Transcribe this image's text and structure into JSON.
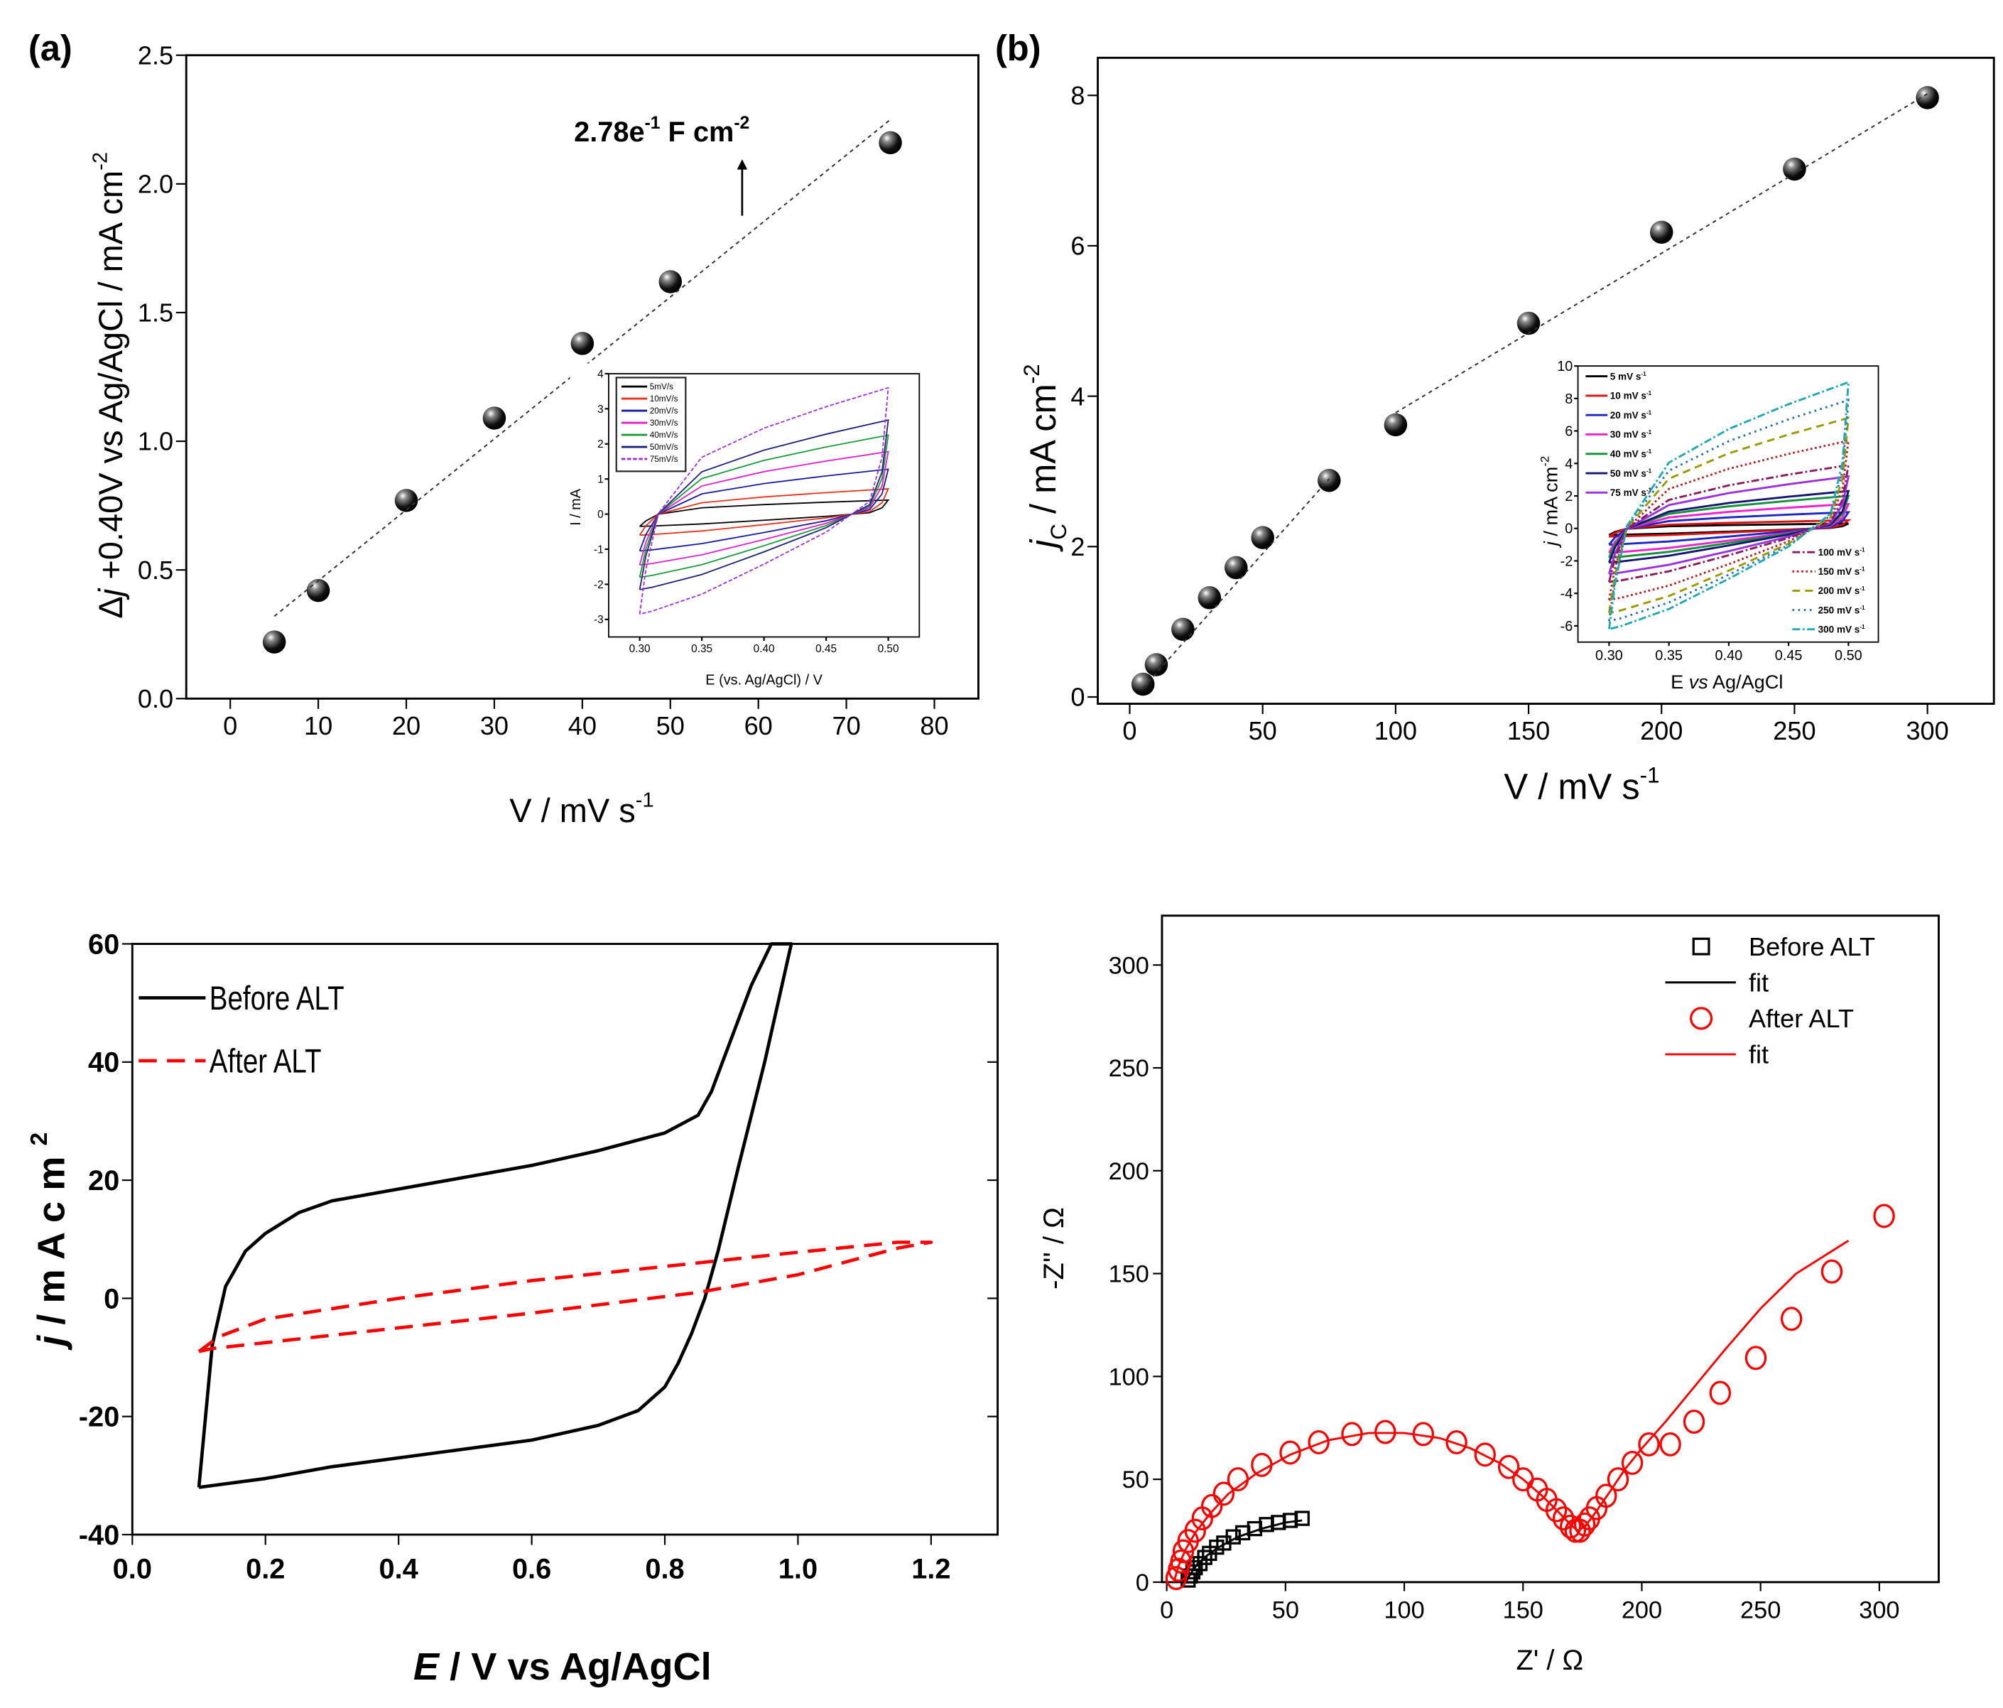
{
  "panels": {
    "a_label": "(a)",
    "b_label": "(b)"
  },
  "chart_data": [
    {
      "id": "panel-a",
      "type": "scatter",
      "xlim": [
        -5,
        85
      ],
      "ylim": [
        0,
        2.5
      ],
      "xticks": [
        0,
        10,
        20,
        30,
        40,
        50,
        60,
        70,
        80
      ],
      "xtick_labels": [
        "0",
        "10",
        "20",
        "30",
        "40",
        "50",
        "60",
        "70",
        "80"
      ],
      "yticks": [
        0,
        0.5,
        1,
        1.5,
        2,
        2.5
      ],
      "ytick_labels": [
        "0.0",
        "0.5",
        "1.0",
        "1.5",
        "2.0",
        "2.5"
      ],
      "xlabel": [
        {
          "t": "V / mV s",
          "s": ""
        },
        {
          "t": "-1",
          "s": "sup"
        }
      ],
      "ylabel": [
        {
          "t": "Δ",
          "s": ""
        },
        {
          "t": "j",
          "s": "i"
        },
        {
          "t": " +0.40V vs Ag/AgCl / mA cm",
          "s": ""
        },
        {
          "t": "-2",
          "s": "sup"
        }
      ],
      "annotation": [
        {
          "t": "2.78e",
          "s": ""
        },
        {
          "t": "-1",
          "s": "sup"
        },
        {
          "t": " F cm",
          "s": ""
        },
        {
          "t": "-2",
          "s": "sup"
        }
      ],
      "series": [
        {
          "kind": "sphere",
          "color": "#000000",
          "x": [
            5,
            10,
            20,
            30,
            40,
            50,
            75
          ],
          "y": [
            0.22,
            0.42,
            0.77,
            1.09,
            1.38,
            1.62,
            2.16
          ]
        },
        {
          "kind": "fit",
          "color": "#333333",
          "x": [
            5,
            75
          ],
          "y": [
            0.32,
            2.25
          ]
        }
      ]
    },
    {
      "id": "panel-a-inset",
      "type": "line",
      "xlim": [
        0.275,
        0.525
      ],
      "ylim": [
        -3.5,
        4
      ],
      "xticks": [
        0.3,
        0.35,
        0.4,
        0.45,
        0.5
      ],
      "xtick_labels": [
        "0.30",
        "0.35",
        "0.40",
        "0.45",
        "0.50"
      ],
      "yticks": [
        -3,
        -2,
        -1,
        0,
        1,
        2,
        3,
        4
      ],
      "ytick_labels": [
        "-3",
        "-2",
        "-1",
        "0",
        "1",
        "2",
        "3",
        "4"
      ],
      "xlabel": [
        {
          "t": "E (vs. Ag/AgCl) / V",
          "s": ""
        }
      ],
      "ylabel": [
        {
          "t": "I / mA",
          "s": ""
        }
      ],
      "series": [
        {
          "name": "5mV/s",
          "color": "#000000",
          "dash": "",
          "j_max": 0.4,
          "j_min": -0.35
        },
        {
          "name": "10mV/s",
          "color": "#e8321e",
          "dash": "",
          "j_max": 0.72,
          "j_min": -0.6
        },
        {
          "name": "20mV/s",
          "color": "#1a1aa0",
          "dash": "",
          "j_max": 1.28,
          "j_min": -1.05
        },
        {
          "name": "30mV/s",
          "color": "#e020c8",
          "dash": "",
          "j_max": 1.78,
          "j_min": -1.45
        },
        {
          "name": "40mV/s",
          "color": "#1c9a3c",
          "dash": "",
          "j_max": 2.25,
          "j_min": -1.8
        },
        {
          "name": "50mV/s",
          "color": "#20207a",
          "dash": "",
          "j_max": 2.68,
          "j_min": -2.15
        },
        {
          "name": "75mV/s",
          "color": "#a030e0",
          "dash": "3 1.5",
          "j_max": 3.6,
          "j_min": -2.85
        }
      ]
    },
    {
      "id": "panel-b",
      "type": "scatter",
      "xlim": [
        -12,
        325
      ],
      "ylim": [
        -0.09,
        8.5
      ],
      "xticks": [
        0,
        50,
        100,
        150,
        200,
        250,
        300
      ],
      "xtick_labels": [
        "0",
        "50",
        "100",
        "150",
        "200",
        "250",
        "300"
      ],
      "yticks": [
        0,
        2,
        4,
        6,
        8
      ],
      "ytick_labels": [
        "0",
        "2",
        "4",
        "6",
        "8"
      ],
      "xlabel": [
        {
          "t": "V / mV s",
          "s": ""
        },
        {
          "t": "-1",
          "s": "sup"
        }
      ],
      "ylabel": [
        {
          "t": "j",
          "s": "i"
        },
        {
          "t": "C",
          "s": "sub"
        },
        {
          "t": " / mA cm",
          "s": ""
        },
        {
          "t": "-2",
          "s": "sup"
        }
      ],
      "series": [
        {
          "kind": "sphere",
          "color": "#000000",
          "x": [
            5,
            10,
            20,
            30,
            40,
            50,
            75,
            100,
            150,
            200,
            250,
            300
          ],
          "y": [
            0.17,
            0.43,
            0.9,
            1.32,
            1.72,
            2.12,
            2.88,
            3.62,
            4.97,
            6.18,
            7.02,
            7.97
          ]
        },
        {
          "kind": "fit",
          "color": "#333333",
          "x": [
            5,
            75
          ],
          "y": [
            0.12,
            2.9
          ]
        },
        {
          "kind": "fit",
          "color": "#333333",
          "x": [
            100,
            300
          ],
          "y": [
            3.78,
            8.02
          ]
        }
      ]
    },
    {
      "id": "panel-b-inset",
      "type": "line",
      "xlim": [
        0.274,
        0.525
      ],
      "ylim": [
        -7,
        10
      ],
      "xticks": [
        0.3,
        0.35,
        0.4,
        0.45,
        0.5
      ],
      "xtick_labels": [
        "0.30",
        "0.35",
        "0.40",
        "0.45",
        "0.50"
      ],
      "yticks": [
        -6,
        -4,
        -2,
        0,
        2,
        4,
        6,
        8,
        10
      ],
      "ytick_labels": [
        "-6",
        "-4",
        "-2",
        "0",
        "2",
        "4",
        "6",
        "8",
        "10"
      ],
      "xlabel": [
        {
          "t": "E ",
          "s": ""
        },
        {
          "t": "vs",
          "s": "i"
        },
        {
          "t": " Ag/AgCl",
          "s": ""
        }
      ],
      "ylabel": [
        {
          "t": "j",
          "s": "i"
        },
        {
          "t": " / mA cm",
          "s": ""
        },
        {
          "t": "-2",
          "s": "sup"
        }
      ],
      "series": [
        {
          "name": "5 mV s",
          "sup": "-1",
          "color": "#000000",
          "dash": "",
          "j_max": 0.3,
          "j_min": -0.4
        },
        {
          "name": "10 mV s",
          "sup": "-1",
          "color": "#e01010",
          "dash": "",
          "j_max": 0.5,
          "j_min": -0.5
        },
        {
          "name": "20 mV s",
          "sup": "-1",
          "color": "#1a28c8",
          "dash": "",
          "j_max": 1.0,
          "j_min": -1.0
        },
        {
          "name": "30 mV s",
          "sup": "-1",
          "color": "#f020d0",
          "dash": "",
          "j_max": 1.5,
          "j_min": -1.5
        },
        {
          "name": "40 mV s",
          "sup": "-1",
          "color": "#12903a",
          "dash": "",
          "j_max": 2.0,
          "j_min": -1.8
        },
        {
          "name": "50 mV s",
          "sup": "-1",
          "color": "#161670",
          "dash": "",
          "j_max": 2.3,
          "j_min": -2.1
        },
        {
          "name": "75 mV s",
          "sup": "-1",
          "color": "#9a30e0",
          "dash": "",
          "j_max": 3.2,
          "j_min": -2.8
        },
        {
          "name": "100 mV s",
          "sup": "-1",
          "color": "#8b1a5e",
          "dash": "6 2 1.5 2",
          "j_max": 3.9,
          "j_min": -3.3
        },
        {
          "name": "150 mV s",
          "sup": "-1",
          "color": "#b22222",
          "dash": "1.5 2",
          "j_max": 5.4,
          "j_min": -4.4
        },
        {
          "name": "200 mV s",
          "sup": "-1",
          "color": "#9a9a00",
          "dash": "6 4",
          "j_max": 6.8,
          "j_min": -5.2
        },
        {
          "name": "250 mV s",
          "sup": "-1",
          "color": "#2a6fb0",
          "dash": "1.5 3",
          "j_max": 7.9,
          "j_min": -5.7
        },
        {
          "name": "300 mV s",
          "sup": "-1",
          "color": "#20a8b8",
          "dash": "6 2 1.5 2",
          "j_max": 9.0,
          "j_min": -6.2
        }
      ]
    },
    {
      "id": "panel-c",
      "type": "line",
      "xlim": [
        0,
        1.3
      ],
      "ylim": [
        -40,
        60
      ],
      "xticks": [
        0,
        0.2,
        0.4,
        0.6,
        0.8,
        1.0,
        1.2
      ],
      "xtick_labels": [
        "0.0",
        "0.2",
        "0.4",
        "0.6",
        "0.8",
        "1.0",
        "1.2"
      ],
      "yticks": [
        -40,
        -20,
        0,
        20,
        40,
        60
      ],
      "ytick_labels": [
        "-40",
        "-20",
        "0",
        "20",
        "40",
        "60"
      ],
      "xlabel": [
        {
          "t": "E",
          "s": "i"
        },
        {
          "t": " / V vs Ag/AgCl",
          "s": ""
        }
      ],
      "ylabel": [
        {
          "t": "j",
          "s": "i"
        },
        {
          "t": " / m A  c m ",
          "s": ""
        },
        {
          "t": "2",
          "s": "sup"
        }
      ],
      "series": [
        {
          "name": "Before ALT",
          "color": "#000000",
          "dash": "",
          "x": [
            0.1,
            0.11,
            0.12,
            0.14,
            0.17,
            0.2,
            0.25,
            0.3,
            0.4,
            0.5,
            0.6,
            0.7,
            0.8,
            0.85,
            0.87,
            0.9,
            0.93,
            0.96,
            0.99,
            0.95,
            0.91,
            0.88,
            0.86,
            0.84,
            0.82,
            0.8,
            0.76,
            0.7,
            0.6,
            0.5,
            0.4,
            0.3,
            0.2,
            0.1
          ],
          "y": [
            -32,
            -20,
            -8,
            2,
            8,
            11,
            14.5,
            16.5,
            18.5,
            20.5,
            22.5,
            25,
            28,
            31,
            35,
            44,
            53,
            60,
            60,
            40,
            22,
            8,
            0,
            -6,
            -11,
            -15,
            -19,
            -21.5,
            -24,
            -25.5,
            -27,
            -28.5,
            -30.5,
            -32
          ]
        },
        {
          "name": "After ALT",
          "color": "#ff0000",
          "dash": "14 8",
          "x": [
            0.1,
            0.13,
            0.2,
            0.4,
            0.6,
            0.85,
            1.0,
            1.15,
            1.2,
            1.15,
            1.0,
            0.85,
            0.6,
            0.4,
            0.2,
            0.12,
            0.1
          ],
          "y": [
            -9,
            -6.5,
            -3.5,
            0,
            3,
            6,
            7.8,
            9.5,
            9.5,
            8.5,
            4,
            1,
            -2.5,
            -5,
            -7.5,
            -8.5,
            -9
          ]
        }
      ]
    },
    {
      "id": "panel-d",
      "type": "scatter",
      "xlim": [
        -2,
        325
      ],
      "ylim": [
        0,
        324
      ],
      "xticks": [
        0,
        50,
        100,
        150,
        200,
        250,
        300
      ],
      "xtick_labels": [
        "0",
        "50",
        "100",
        "150",
        "200",
        "250",
        "300"
      ],
      "yticks": [
        0,
        50,
        100,
        150,
        200,
        250,
        300
      ],
      "ytick_labels": [
        "0",
        "50",
        "100",
        "150",
        "200",
        "250",
        "300"
      ],
      "xlabel": [
        {
          "t": "Z' / Ω",
          "s": ""
        }
      ],
      "ylabel": [
        {
          "t": "-Z'' / Ω",
          "s": ""
        }
      ],
      "series": [
        {
          "name": "Before ALT",
          "kind": "square",
          "color": "#000000",
          "x": [
            9,
            10,
            11,
            12,
            14,
            16,
            18,
            21,
            24,
            28,
            32,
            37,
            42,
            47,
            52,
            57
          ],
          "y": [
            1,
            3,
            5,
            7,
            9,
            12,
            14,
            17,
            19,
            22,
            24,
            26,
            28,
            29,
            30,
            31
          ]
        },
        {
          "name": "fit",
          "kind": "line",
          "color": "#000000",
          "x": [
            8,
            10,
            13,
            17,
            22,
            30,
            40,
            50,
            57
          ],
          "y": [
            0,
            4,
            9,
            13,
            17,
            22,
            26,
            29,
            30
          ]
        },
        {
          "name": "After ALT",
          "kind": "circle",
          "color": "#ff0000",
          "x": [
            4,
            5,
            6,
            7,
            9,
            12,
            15,
            19,
            24,
            30,
            40,
            52,
            64,
            78,
            92,
            108,
            122,
            134,
            144,
            150,
            156,
            160,
            164,
            167,
            170,
            172,
            174,
            176,
            178,
            181,
            185,
            190,
            196,
            203,
            212,
            222,
            233,
            248,
            263,
            280,
            302
          ],
          "y": [
            2,
            6,
            10,
            15,
            20,
            25,
            31,
            37,
            43,
            50,
            57,
            63,
            68,
            72,
            73,
            72,
            68,
            62,
            56,
            50,
            45,
            40,
            35,
            31,
            27,
            25,
            25,
            28,
            31,
            36,
            42,
            50,
            58,
            67,
            67,
            78,
            92,
            109,
            128,
            151,
            178
          ]
        },
        {
          "name": "fit",
          "kind": "line",
          "color": "#ff0000",
          "x": [
            3,
            5,
            8,
            12,
            18,
            26,
            38,
            52,
            68,
            85,
            100,
            115,
            128,
            140,
            150,
            158,
            165,
            170,
            173,
            176,
            180,
            186,
            193,
            200,
            210,
            220,
            235,
            250,
            265,
            287
          ],
          "y": [
            0,
            8,
            16,
            24,
            33,
            43,
            53,
            62,
            69,
            72.5,
            72.5,
            70,
            65,
            58,
            50,
            42,
            34,
            28,
            25,
            27,
            33,
            43,
            55,
            65,
            78,
            92,
            113,
            133,
            150,
            166
          ]
        }
      ]
    }
  ]
}
